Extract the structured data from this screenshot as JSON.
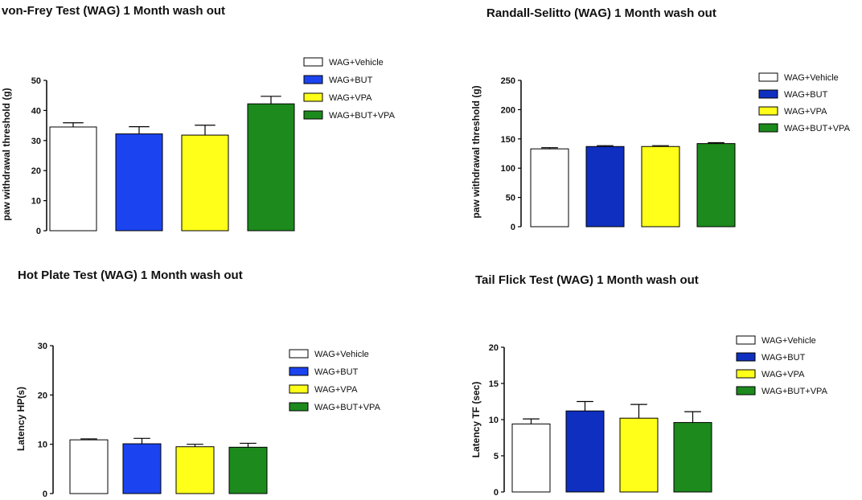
{
  "chart_data": [
    {
      "type": "bar",
      "title": "von-Frey Test (WAG) 1 Month wash out",
      "xlabel": "",
      "ylabel": "paw  withdrawal threshold (g)",
      "ylim": [
        0,
        50
      ],
      "yticks": [
        0,
        10,
        20,
        30,
        40,
        50
      ],
      "categories": [
        "WAG+Vehicle",
        "WAG+BUT",
        "WAG+VPA",
        "WAG+BUT+VPA"
      ],
      "values": [
        34.5,
        32.2,
        31.8,
        42.2
      ],
      "errors": [
        1.4,
        2.4,
        3.3,
        2.5
      ],
      "colors": [
        "#ffffff",
        "#1b44f0",
        "#ffff1a",
        "#1c8a1c"
      ]
    },
    {
      "type": "bar",
      "title": "Randall-Selitto (WAG) 1 Month wash out",
      "xlabel": "",
      "ylabel": "paw  withdrawal threshold (g)",
      "ylim": [
        0,
        250
      ],
      "yticks": [
        0,
        50,
        100,
        150,
        200,
        250
      ],
      "categories": [
        "WAG+Vehicle",
        "WAG+BUT",
        "WAG+VPA",
        "WAG+BUT+VPA"
      ],
      "values": [
        133,
        137,
        137,
        142
      ],
      "errors": [
        2,
        1.5,
        1.5,
        1.5
      ],
      "colors": [
        "#ffffff",
        "#0f2fc0",
        "#ffff1a",
        "#1c8a1c"
      ]
    },
    {
      "type": "bar",
      "title": "Hot Plate Test (WAG) 1 Month wash out",
      "xlabel": "",
      "ylabel": "Latency HP(s)",
      "ylim": [
        0,
        30
      ],
      "yticks": [
        0,
        10,
        20,
        30
      ],
      "categories": [
        "WAG+Vehicle",
        "WAG+BUT",
        "WAG+VPA",
        "WAG+BUT+VPA"
      ],
      "values": [
        10.9,
        10.1,
        9.5,
        9.4
      ],
      "errors": [
        0.2,
        1.1,
        0.5,
        0.8
      ],
      "colors": [
        "#ffffff",
        "#1b44f0",
        "#ffff1a",
        "#1c8a1c"
      ]
    },
    {
      "type": "bar",
      "title": "Tail Flick Test (WAG) 1 Month wash out",
      "xlabel": "",
      "ylabel": "Latency TF (sec)",
      "ylim": [
        0,
        20
      ],
      "yticks": [
        0,
        5,
        10,
        15,
        20
      ],
      "categories": [
        "WAG+Vehicle",
        "WAG+BUT",
        "WAG+VPA",
        "WAG+BUT+VPA"
      ],
      "values": [
        9.4,
        11.2,
        10.2,
        9.6
      ],
      "errors": [
        0.7,
        1.3,
        1.9,
        1.5
      ],
      "colors": [
        "#ffffff",
        "#0f2fc0",
        "#ffff1a",
        "#1c8a1c"
      ]
    }
  ]
}
